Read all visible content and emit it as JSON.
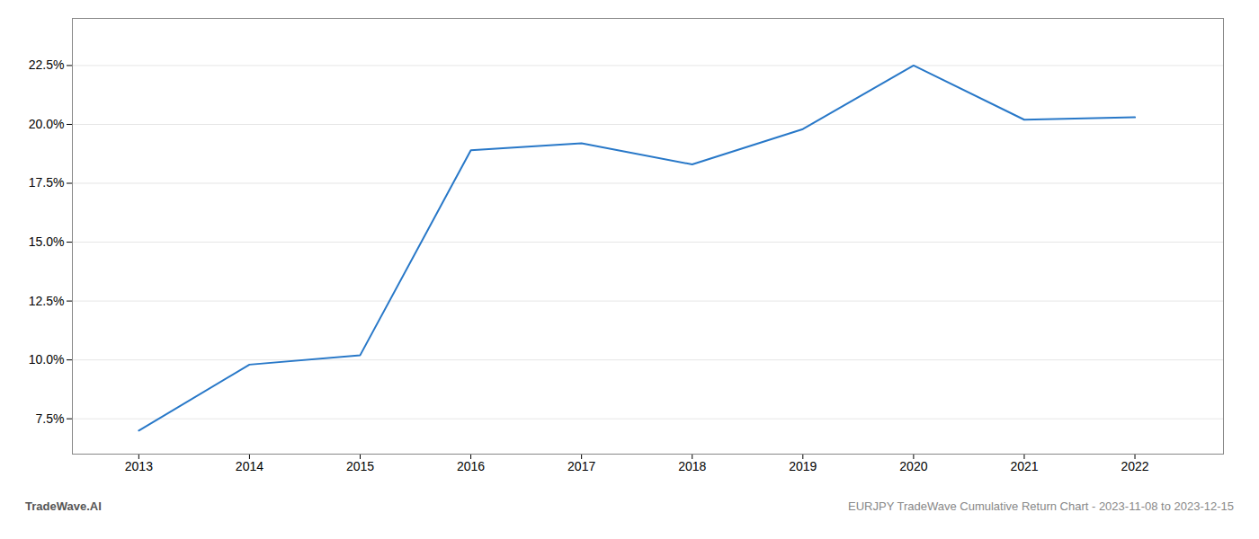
{
  "chart_data": {
    "type": "line",
    "x": [
      2013,
      2014,
      2015,
      2016,
      2017,
      2018,
      2019,
      2020,
      2021,
      2022
    ],
    "values": [
      7.0,
      9.8,
      10.2,
      18.9,
      19.2,
      18.3,
      19.8,
      22.5,
      20.2,
      20.3
    ],
    "color": "#2878c8",
    "xlim": [
      2012.4,
      2022.8
    ],
    "xticks": [
      2013,
      2014,
      2015,
      2016,
      2017,
      2018,
      2019,
      2020,
      2021,
      2022
    ],
    "ylim": [
      6.0,
      24.5
    ],
    "yticks": [
      {
        "value": 7.5,
        "label": "7.5%"
      },
      {
        "value": 10.0,
        "label": "10.0%"
      },
      {
        "value": 12.5,
        "label": "12.5%"
      },
      {
        "value": 15.0,
        "label": "15.0%"
      },
      {
        "value": 17.5,
        "label": "17.5%"
      },
      {
        "value": 20.0,
        "label": "20.0%"
      },
      {
        "value": 22.5,
        "label": "22.5%"
      }
    ],
    "grid": true,
    "annotations": [
      "TradeWave.AI",
      "EURJPY TradeWave Cumulative Return Chart - 2023-11-08 to 2023-12-15"
    ]
  }
}
